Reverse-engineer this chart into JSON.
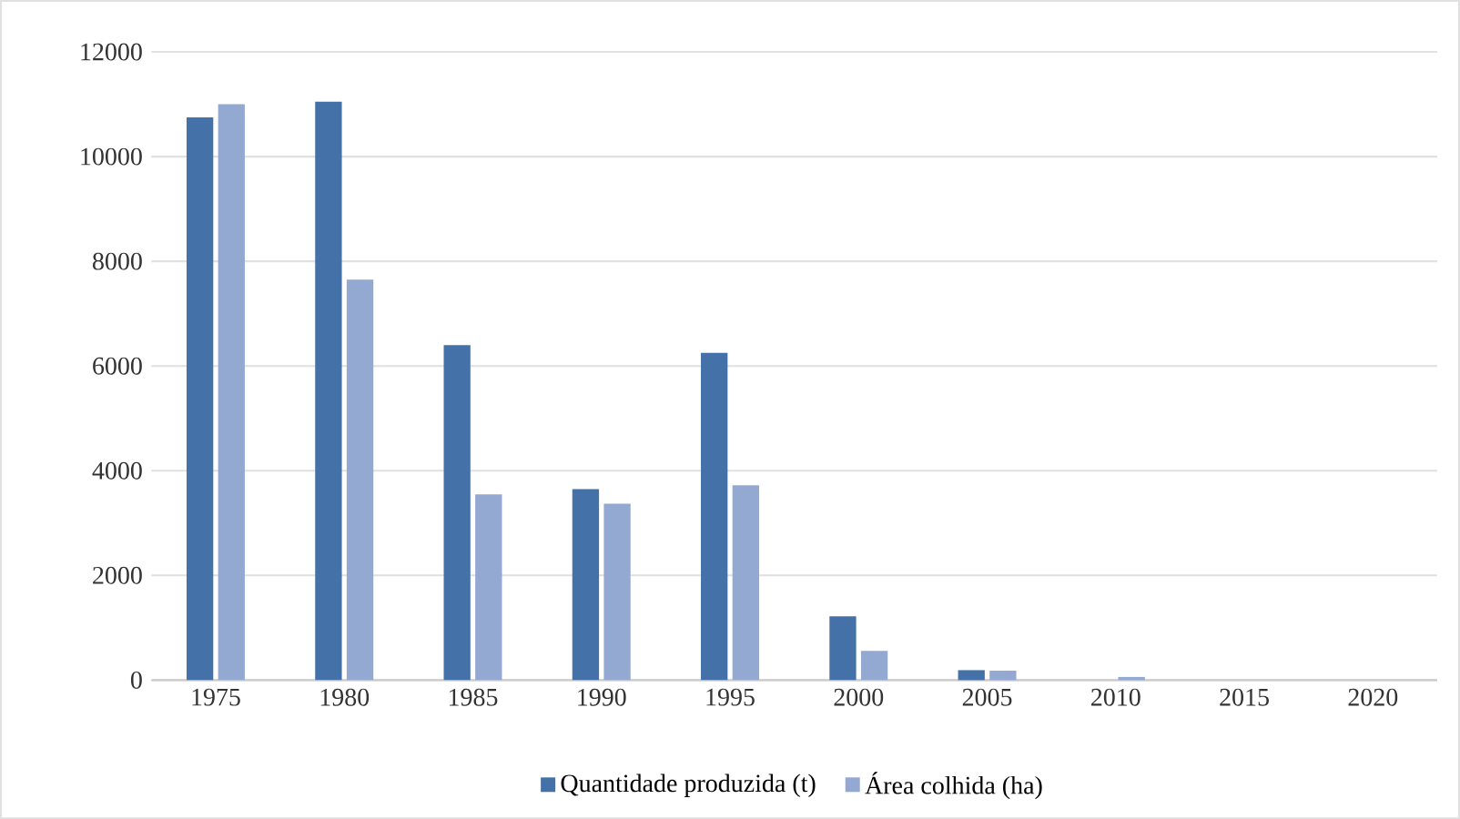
{
  "chart_data": {
    "type": "bar",
    "categories": [
      "1975",
      "1980",
      "1985",
      "1990",
      "1995",
      "2000",
      "2005",
      "2010",
      "2015",
      "2020"
    ],
    "series": [
      {
        "name": "Quantidade produzida (t)",
        "color": "#4472a8",
        "values": [
          10750,
          11050,
          6400,
          3650,
          6250,
          1220,
          190,
          0,
          0,
          0
        ]
      },
      {
        "name": "Área colhida (ha)",
        "color": "#93a9d1",
        "values": [
          11000,
          7650,
          3550,
          3370,
          3720,
          560,
          180,
          60,
          0,
          0
        ]
      }
    ],
    "ylim": [
      0,
      12000
    ],
    "yticks": [
      0,
      2000,
      4000,
      6000,
      8000,
      10000,
      12000
    ],
    "grid": "y",
    "legend": "bottom"
  }
}
